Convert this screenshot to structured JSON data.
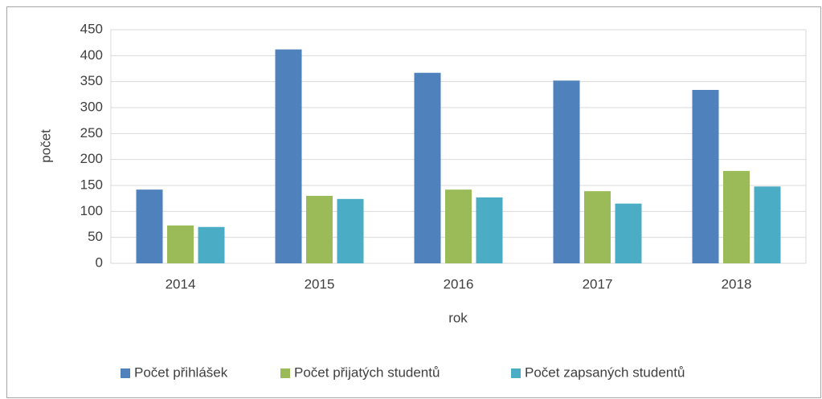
{
  "chart_data": {
    "type": "bar",
    "xlabel": "rok",
    "ylabel": "počet",
    "categories": [
      "2014",
      "2015",
      "2016",
      "2017",
      "2018"
    ],
    "series": [
      {
        "name": "Počet přihlášek",
        "color": "#4f81bd",
        "values": [
          142,
          412,
          367,
          352,
          334
        ]
      },
      {
        "name": "Počet přijatých studentů",
        "color": "#9bbb59",
        "values": [
          73,
          130,
          142,
          139,
          178
        ]
      },
      {
        "name": "Počet zapsaných studentů",
        "color": "#4bacc6",
        "values": [
          70,
          124,
          127,
          115,
          148
        ]
      }
    ],
    "ylim": [
      0,
      450
    ],
    "yticks": [
      0,
      50,
      100,
      150,
      200,
      250,
      300,
      350,
      400,
      450
    ],
    "grid": true,
    "legend": "bottom"
  }
}
